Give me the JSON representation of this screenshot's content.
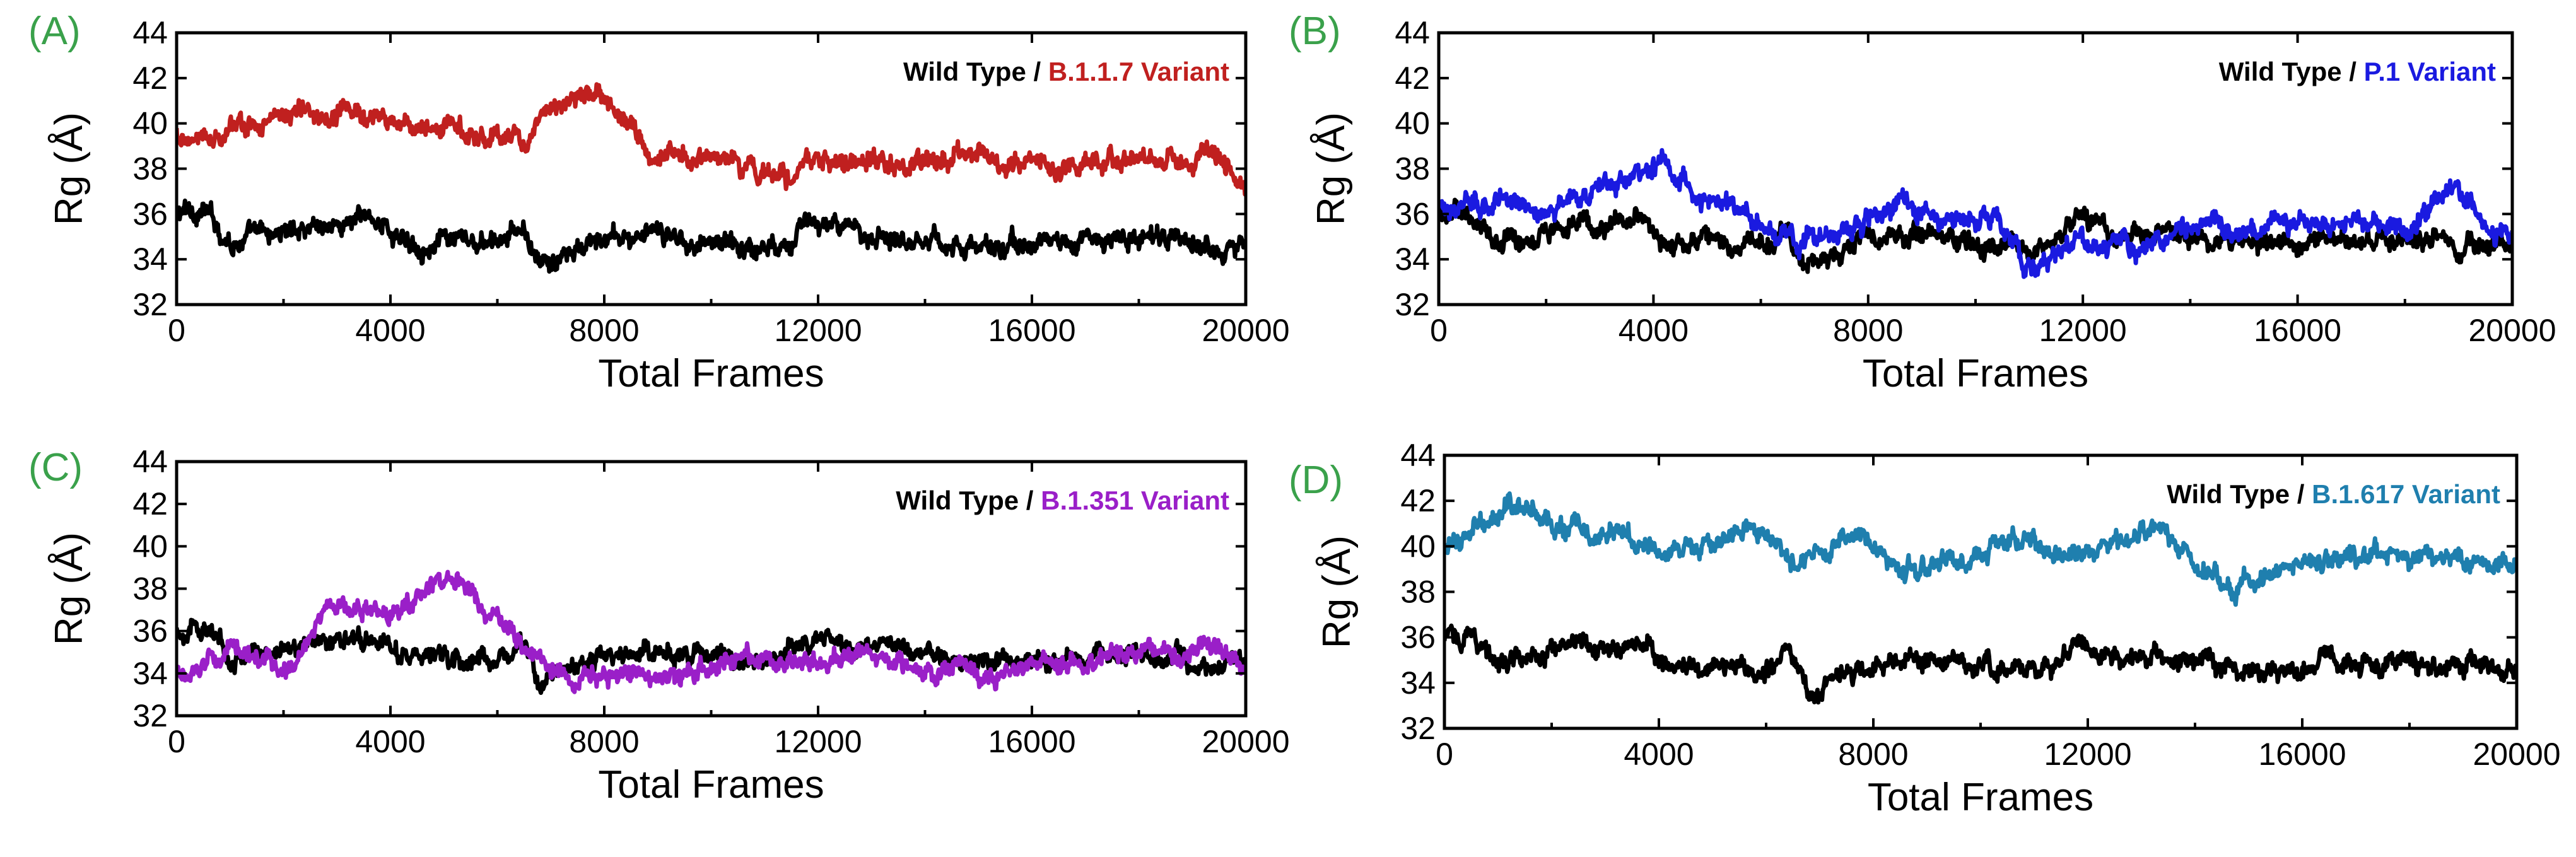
{
  "chart_data": [
    {
      "type": "line",
      "panel": "(A)",
      "xlabel": "Total Frames",
      "ylabel": "Rg (Å)",
      "xlim": [
        0,
        20000
      ],
      "ylim": [
        32,
        44
      ],
      "xticks": [
        0,
        4000,
        8000,
        12000,
        16000,
        20000
      ],
      "yticks": [
        32,
        34,
        36,
        38,
        40,
        42,
        44
      ],
      "legend_placement": "top-right",
      "legend": {
        "wt": "Wild Type",
        "sep": " / ",
        "variant": "B.1.1.7 Variant"
      },
      "series": [
        {
          "name": "Wild Type",
          "color": "#000000",
          "x": [
            0,
            500,
            1000,
            2000,
            2500,
            3000,
            3700,
            4200,
            5000,
            6000,
            6500,
            6800,
            7200,
            8000,
            9000,
            10000,
            11000,
            12000,
            12500,
            13000,
            14000,
            15000,
            16000,
            17000,
            18000,
            19000,
            20000
          ],
          "y": [
            36.0,
            36.2,
            34.8,
            35.2,
            35.6,
            35.5,
            35.9,
            34.8,
            34.7,
            34.6,
            35.3,
            33.6,
            34.0,
            34.9,
            35.0,
            34.8,
            34.5,
            35.7,
            35.1,
            35.2,
            35.0,
            34.4,
            34.7,
            34.8,
            35.0,
            34.6,
            34.7
          ]
        },
        {
          "name": "B.1.1.7 Variant",
          "color": "#c0201f",
          "x": [
            0,
            500,
            1000,
            2000,
            2500,
            3000,
            3700,
            4200,
            5000,
            6000,
            6500,
            7000,
            7800,
            8300,
            8800,
            9500,
            10000,
            11000,
            11500,
            12000,
            13000,
            14000,
            15000,
            16000,
            17000,
            18000,
            19000,
            19500,
            20000
          ],
          "y": [
            39.5,
            39.2,
            39.8,
            40.2,
            40.5,
            40.4,
            40.3,
            39.9,
            39.8,
            39.6,
            39.4,
            40.5,
            41.6,
            40.4,
            38.6,
            38.7,
            38.6,
            37.9,
            37.6,
            38.4,
            38.3,
            38.1,
            38.5,
            38.4,
            38.3,
            38.6,
            38.2,
            38.6,
            36.8
          ]
        }
      ]
    },
    {
      "type": "line",
      "panel": "(B)",
      "xlabel": "Total Frames",
      "ylabel": "Rg (Å)",
      "xlim": [
        0,
        20000
      ],
      "ylim": [
        32,
        44
      ],
      "xticks": [
        0,
        4000,
        8000,
        12000,
        16000,
        20000
      ],
      "yticks": [
        32,
        34,
        36,
        38,
        40,
        42,
        44
      ],
      "legend_placement": "top-right",
      "legend": {
        "wt": "Wild Type",
        "sep": " / ",
        "variant": "P.1 Variant"
      },
      "series": [
        {
          "name": "Wild Type",
          "color": "#000000",
          "x": [
            0,
            500,
            1000,
            2000,
            2500,
            3000,
            3700,
            4200,
            5000,
            6000,
            6500,
            6800,
            7200,
            8000,
            9000,
            10000,
            11000,
            12000,
            12500,
            13000,
            14000,
            15000,
            16000,
            17000,
            18000,
            19000,
            20000
          ],
          "y": [
            36.0,
            36.2,
            34.8,
            35.2,
            35.6,
            35.5,
            35.9,
            34.8,
            34.7,
            34.6,
            35.3,
            33.6,
            34.0,
            34.9,
            35.0,
            34.8,
            34.5,
            35.7,
            35.1,
            35.2,
            35.0,
            34.4,
            34.7,
            34.8,
            35.0,
            34.6,
            34.7
          ]
        },
        {
          "name": "P.1 Variant",
          "color": "#1a1ae0",
          "x": [
            0,
            1000,
            2000,
            3000,
            3800,
            4200,
            4700,
            5500,
            6000,
            7000,
            8000,
            8600,
            9500,
            10400,
            10900,
            11500,
            12000,
            13000,
            14000,
            15000,
            16000,
            17000,
            18000,
            18900,
            19300,
            19700,
            20000
          ],
          "y": [
            36.4,
            36.5,
            36.3,
            37.0,
            38.0,
            38.5,
            37.0,
            36.2,
            35.6,
            34.8,
            35.8,
            36.6,
            35.8,
            35.7,
            33.7,
            34.3,
            34.8,
            34.4,
            35.5,
            35.2,
            35.7,
            35.8,
            35.4,
            37.1,
            36.2,
            35.0,
            34.9
          ]
        }
      ]
    },
    {
      "type": "line",
      "panel": "(C)",
      "xlabel": "Total Frames",
      "ylabel": "Rg (Å)",
      "xlim": [
        0,
        20000
      ],
      "ylim": [
        32,
        44
      ],
      "xticks": [
        0,
        4000,
        8000,
        12000,
        16000,
        20000
      ],
      "yticks": [
        32,
        34,
        36,
        38,
        40,
        42,
        44
      ],
      "legend_placement": "top-right",
      "legend": {
        "wt": "Wild Type",
        "sep": " / ",
        "variant": "B.1.351 Variant"
      },
      "series": [
        {
          "name": "Wild Type",
          "color": "#000000",
          "x": [
            0,
            500,
            1000,
            2000,
            2500,
            3000,
            3700,
            4200,
            5000,
            6000,
            6500,
            6800,
            7200,
            8000,
            9000,
            10000,
            11000,
            12000,
            12500,
            13000,
            14000,
            15000,
            16000,
            17000,
            18000,
            19000,
            20000
          ],
          "y": [
            36.0,
            36.2,
            34.8,
            35.2,
            35.6,
            35.5,
            35.9,
            34.8,
            34.7,
            34.6,
            35.3,
            33.6,
            34.0,
            34.9,
            35.0,
            34.8,
            34.5,
            35.7,
            35.1,
            35.2,
            35.0,
            34.4,
            34.7,
            34.8,
            35.0,
            34.6,
            34.7
          ]
        },
        {
          "name": "B.1.351 Variant",
          "color": "#9a1fc8",
          "x": [
            0,
            300,
            1000,
            1500,
            2200,
            2800,
            3300,
            4000,
            4600,
            5300,
            5800,
            6200,
            6800,
            7500,
            8500,
            9500,
            10500,
            11500,
            12500,
            13500,
            14500,
            15000,
            16000,
            17000,
            18000,
            19000,
            19500,
            20000
          ],
          "y": [
            34.0,
            33.8,
            35.3,
            34.6,
            34.0,
            37.3,
            36.8,
            37.0,
            37.8,
            38.4,
            37.0,
            36.0,
            34.8,
            33.5,
            34.2,
            33.8,
            34.9,
            34.5,
            34.9,
            34.6,
            34.2,
            33.9,
            34.5,
            34.6,
            34.9,
            35.1,
            35.3,
            34.3
          ]
        }
      ]
    },
    {
      "type": "line",
      "panel": "(D)",
      "xlabel": "Total Frames",
      "ylabel": "Rg (Å)",
      "xlim": [
        0,
        20000
      ],
      "ylim": [
        32,
        44
      ],
      "xticks": [
        0,
        4000,
        8000,
        12000,
        16000,
        20000
      ],
      "yticks": [
        32,
        34,
        36,
        38,
        40,
        42,
        44
      ],
      "legend_placement": "top-right",
      "legend": {
        "wt": "Wild Type",
        "sep": " / ",
        "variant": "B.1.617 Variant"
      },
      "series": [
        {
          "name": "Wild Type",
          "color": "#000000",
          "x": [
            0,
            500,
            1000,
            2000,
            2500,
            3000,
            3700,
            4200,
            5000,
            6000,
            6500,
            6800,
            7200,
            8000,
            9000,
            10000,
            11000,
            12000,
            12500,
            13000,
            14000,
            15000,
            16000,
            17000,
            18000,
            19000,
            20000
          ],
          "y": [
            36.0,
            36.2,
            34.8,
            35.2,
            35.6,
            35.5,
            35.9,
            34.8,
            34.7,
            34.6,
            35.3,
            33.6,
            34.0,
            34.9,
            35.0,
            34.8,
            34.5,
            35.7,
            35.1,
            35.2,
            35.0,
            34.4,
            34.7,
            34.8,
            35.0,
            34.6,
            34.7
          ]
        },
        {
          "name": "B.1.617 Variant",
          "color": "#1f7fae",
          "x": [
            0,
            500,
            1200,
            2000,
            3000,
            4000,
            5000,
            5800,
            6500,
            7000,
            7800,
            8500,
            9500,
            10200,
            10800,
            11500,
            12500,
            13100,
            14000,
            14700,
            15500,
            16500,
            17500,
            18500,
            19500,
            20000
          ],
          "y": [
            40.0,
            40.4,
            42.0,
            41.0,
            40.5,
            39.9,
            39.9,
            41.0,
            39.4,
            39.8,
            40.4,
            39.0,
            39.3,
            39.9,
            40.4,
            39.8,
            40.0,
            40.6,
            39.6,
            37.9,
            39.1,
            39.2,
            39.5,
            39.6,
            39.2,
            39.1
          ]
        }
      ]
    }
  ]
}
